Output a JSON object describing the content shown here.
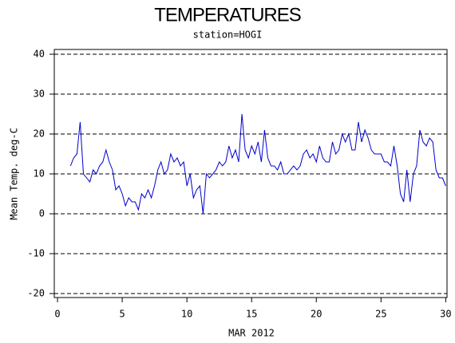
{
  "chart_data": {
    "type": "line",
    "title": "TEMPERATURES",
    "subtitle": "station=HOGI",
    "x_label": "MAR 2012",
    "y_label": "Mean Temp. deg-C",
    "xlim": [
      -0.25,
      30.1
    ],
    "ylim": [
      -21,
      41.2
    ],
    "xticks": [
      0,
      5,
      10,
      15,
      20,
      25,
      30
    ],
    "yticks": [
      -20,
      -10,
      0,
      10,
      20,
      30,
      40
    ],
    "grid": true,
    "series": [
      {
        "color": "#0000cc",
        "x": [
          1,
          1.25,
          1.5,
          1.75,
          2,
          2.25,
          2.5,
          2.75,
          3,
          3.25,
          3.5,
          3.75,
          4,
          4.25,
          4.5,
          4.75,
          5,
          5.25,
          5.5,
          5.75,
          6,
          6.25,
          6.5,
          6.75,
          7,
          7.25,
          7.5,
          7.75,
          8,
          8.25,
          8.5,
          8.75,
          9,
          9.25,
          9.5,
          9.75,
          10,
          10.25,
          10.5,
          10.75,
          11,
          11.25,
          11.5,
          11.75,
          12,
          12.25,
          12.5,
          12.75,
          13,
          13.25,
          13.5,
          13.75,
          14,
          14.25,
          14.5,
          14.75,
          15,
          15.25,
          15.5,
          15.75,
          16,
          16.25,
          16.5,
          16.75,
          17,
          17.25,
          17.5,
          17.75,
          18,
          18.25,
          18.5,
          18.75,
          19,
          19.25,
          19.5,
          19.75,
          20,
          20.25,
          20.5,
          20.75,
          21,
          21.25,
          21.5,
          21.75,
          22,
          22.25,
          22.5,
          22.75,
          23,
          23.25,
          23.5,
          23.75,
          24,
          24.25,
          24.5,
          24.75,
          25,
          25.25,
          25.5,
          25.75,
          26,
          26.25,
          26.5,
          26.75,
          27,
          27.25,
          27.5,
          27.75,
          28,
          28.25,
          28.5,
          28.75,
          29,
          29.25,
          29.5,
          29.75,
          30
        ],
        "values": [
          12,
          14,
          15,
          23,
          10,
          9,
          8,
          11,
          10,
          12,
          13,
          16,
          13,
          11,
          6,
          7,
          5,
          2,
          4,
          3,
          3,
          1,
          5,
          4,
          6,
          4,
          7,
          11,
          13,
          10,
          11,
          15,
          13,
          14,
          12,
          13,
          7,
          10,
          4,
          6,
          7,
          0,
          10,
          9,
          10,
          11,
          13,
          12,
          13,
          17,
          14,
          16,
          13,
          25,
          16,
          14,
          17,
          15,
          18,
          13,
          21,
          14,
          12,
          12,
          11,
          13,
          10,
          10,
          11,
          12,
          11,
          12,
          15,
          16,
          14,
          15,
          13,
          17,
          14,
          13,
          13,
          18,
          15,
          16,
          20,
          18,
          20,
          16,
          16,
          23,
          18,
          21,
          19,
          16,
          15,
          15,
          15,
          13,
          13,
          12,
          17,
          12,
          5,
          3,
          11,
          3,
          10,
          12,
          21,
          18,
          17,
          19,
          18,
          11,
          9,
          9,
          7
        ]
      }
    ]
  }
}
